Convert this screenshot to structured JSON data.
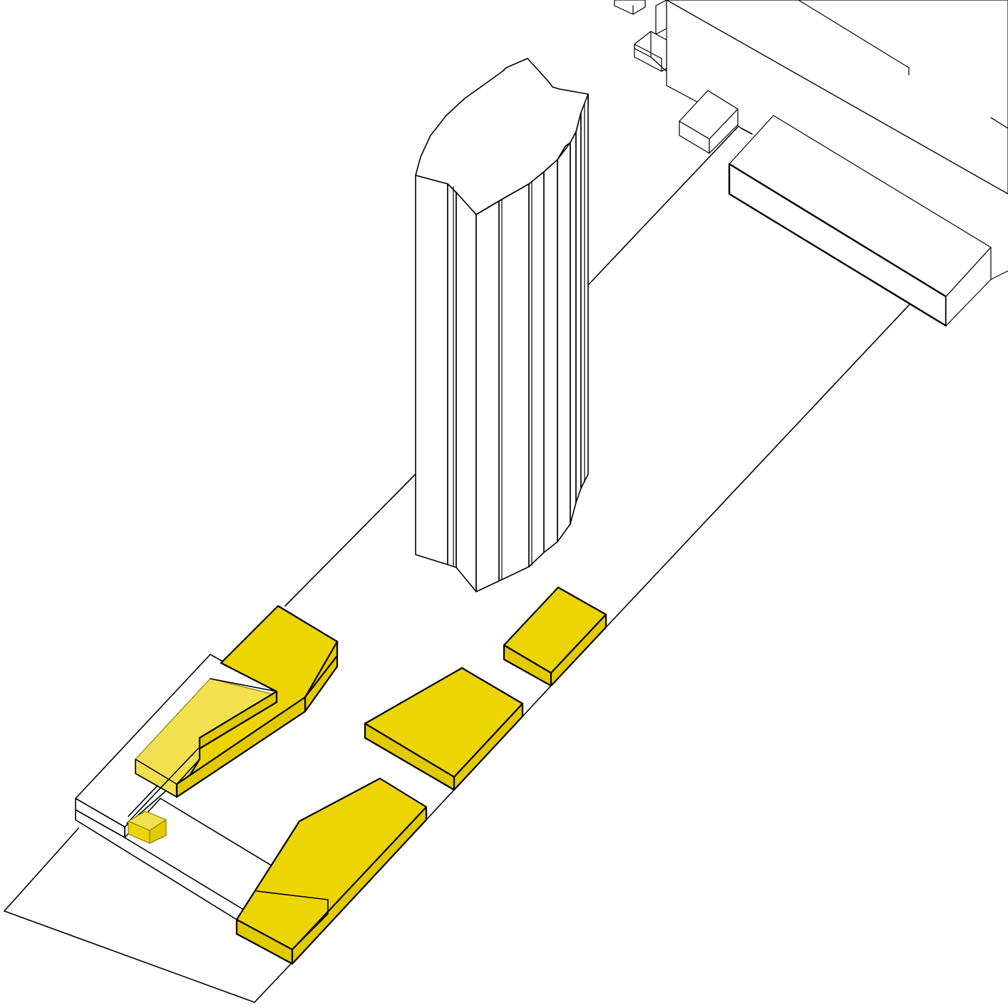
{
  "diagram": {
    "type": "axonometric-massing",
    "colors": {
      "background": "#ffffff",
      "line": "#000000",
      "highlight": "#edd505",
      "highlight_dark": "#e2ca00",
      "highlight_soft": "#f2e050"
    },
    "elements": {
      "tower": "tower-mass",
      "site": "site-plot",
      "proposed_volumes": 6,
      "context_blocks": 5
    }
  }
}
